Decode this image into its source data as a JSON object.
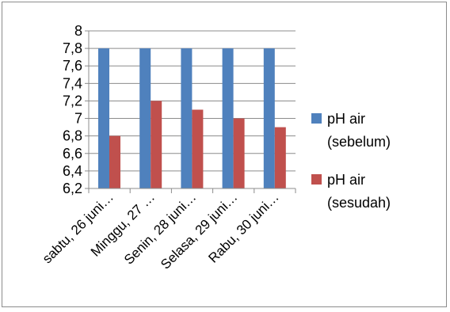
{
  "chart_data": {
    "type": "bar",
    "categories": [
      "sabtu, 26 juni…",
      "Minggu, 27 …",
      "Senin, 28 juni…",
      "Selasa, 29 juni…",
      "Rabu, 30 juni…"
    ],
    "series": [
      {
        "name": "pH air (sebelum)",
        "name_lines": [
          "pH air",
          "(sebelum)"
        ],
        "color": "#4F81BD",
        "values": [
          7.8,
          7.8,
          7.8,
          7.8,
          7.8
        ]
      },
      {
        "name": "pH air (sesudah)",
        "name_lines": [
          "pH air",
          "(sesudah)"
        ],
        "color": "#C0504D",
        "values": [
          6.8,
          7.2,
          7.1,
          7.0,
          6.9
        ]
      }
    ],
    "ylim": [
      6.2,
      8
    ],
    "yticks": [
      "6,2",
      "6,4",
      "6,6",
      "6,8",
      "7",
      "7,2",
      "7,4",
      "7,6",
      "7,8",
      "8"
    ],
    "grid": true,
    "legend": "right"
  }
}
